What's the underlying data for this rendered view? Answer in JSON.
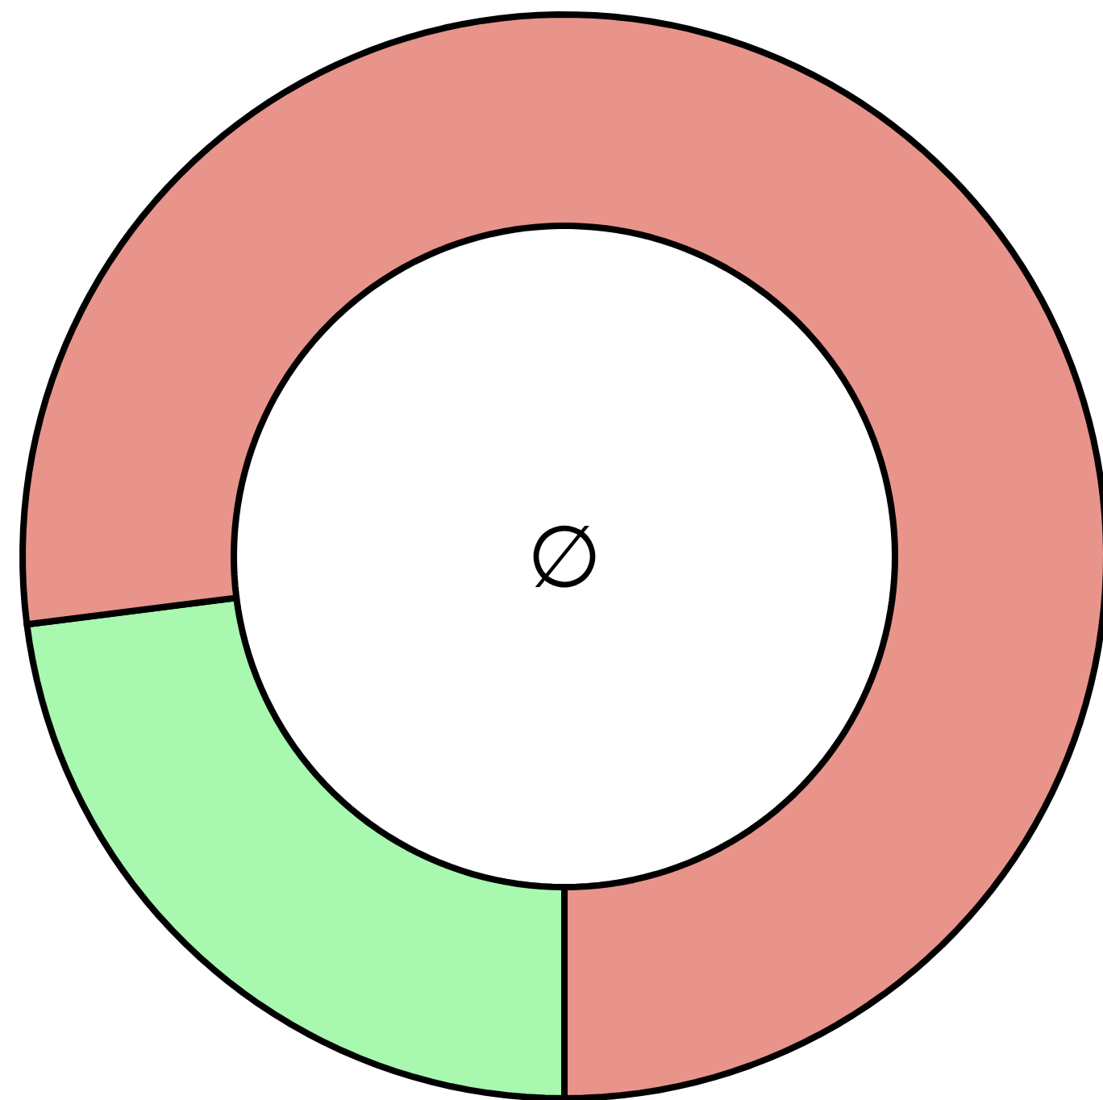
{
  "chart_data": {
    "type": "donut",
    "categories": [
      null,
      null
    ],
    "values": [
      23,
      77
    ],
    "colors": [
      "#a8f8b0",
      "#e8948a"
    ],
    "annotations": [
      "∅"
    ]
  }
}
